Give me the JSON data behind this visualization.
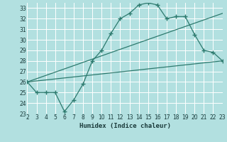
{
  "xlabel": "Humidex (Indice chaleur)",
  "bg_color": "#b2e0e0",
  "grid_color": "#ffffff",
  "line_color": "#2d7a6e",
  "xlim": [
    2,
    23
  ],
  "ylim": [
    23,
    33.5
  ],
  "xticks": [
    2,
    3,
    4,
    5,
    6,
    7,
    8,
    9,
    10,
    11,
    12,
    13,
    14,
    15,
    16,
    17,
    18,
    19,
    20,
    21,
    22,
    23
  ],
  "yticks": [
    23,
    24,
    25,
    26,
    27,
    28,
    29,
    30,
    31,
    32,
    33
  ],
  "series1_x": [
    2,
    3,
    4,
    5,
    6,
    7,
    8,
    9,
    10,
    11,
    12,
    13,
    14,
    15,
    16,
    17,
    18,
    19,
    20,
    21,
    22,
    23
  ],
  "series1_y": [
    26.0,
    25.0,
    25.0,
    25.0,
    23.2,
    24.3,
    25.8,
    28.0,
    29.0,
    30.6,
    32.0,
    32.5,
    33.3,
    33.5,
    33.3,
    32.0,
    32.2,
    32.2,
    30.5,
    29.0,
    28.8,
    28.0
  ],
  "series2_x": [
    2,
    23
  ],
  "series2_y": [
    26.0,
    32.5
  ],
  "series3_x": [
    2,
    23
  ],
  "series3_y": [
    26.0,
    28.0
  ],
  "tick_fontsize": 5.5,
  "xlabel_fontsize": 6.5
}
